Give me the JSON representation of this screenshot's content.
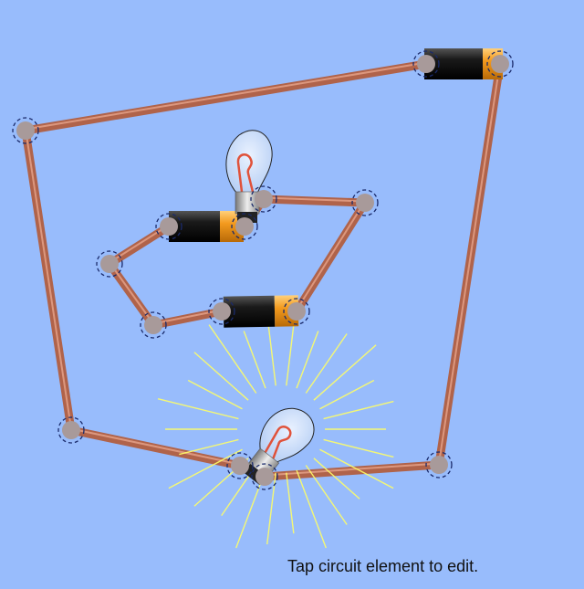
{
  "app": {
    "background": "#98bcfc"
  },
  "hint": {
    "text": "Tap circuit element to edit."
  },
  "colors": {
    "wire": "#b0634a",
    "wire_highlight": "#e8a58c",
    "junction_fill": "#a89a9a",
    "junction_outline": "#1a2a6a",
    "battery_body": "#1a1a1a",
    "battery_cap": "#f39a1e",
    "bulb_glass": "#cfe0ff",
    "filament": "#e0523a",
    "glow": "#ffff66"
  },
  "circuit": {
    "bulbs": [
      {
        "name": "bulb-unlit",
        "lit": false
      },
      {
        "name": "bulb-lit",
        "lit": true
      }
    ],
    "batteries": [
      {
        "name": "battery-top-right"
      },
      {
        "name": "battery-inner-upper"
      },
      {
        "name": "battery-inner-lower"
      }
    ]
  }
}
